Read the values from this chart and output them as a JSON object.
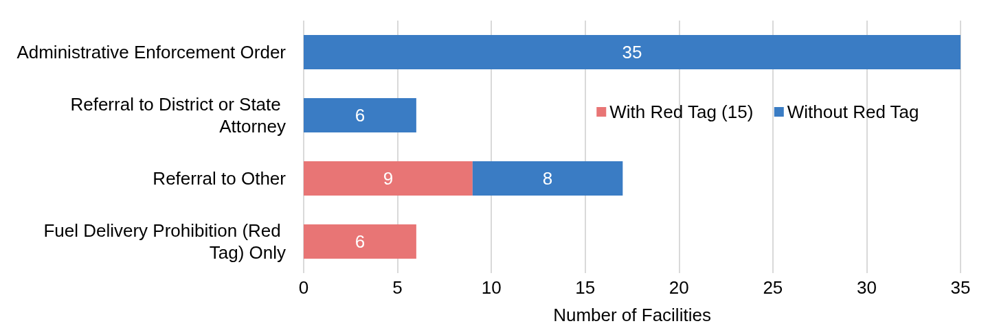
{
  "chart_data": {
    "type": "bar",
    "orientation": "horizontal",
    "stacked": true,
    "xlabel": "Number of Facilities",
    "categories": [
      "Administrative Enforcement Order",
      "Referral to District or State Attorney",
      "Referral to Other",
      "Fuel Delivery Prohibition (Red Tag) Only"
    ],
    "series": [
      {
        "name": "With Red Tag (15)",
        "color": "#e87575",
        "values": [
          null,
          null,
          9,
          6
        ]
      },
      {
        "name": "Without Red Tag",
        "color": "#3a7cc4",
        "values": [
          35,
          6,
          8,
          null
        ]
      }
    ],
    "xlim": [
      0,
      35
    ],
    "xticks": [
      0,
      5,
      10,
      15,
      20,
      25,
      30,
      35
    ],
    "grid": "x",
    "legend": "right",
    "data_labels": true
  }
}
